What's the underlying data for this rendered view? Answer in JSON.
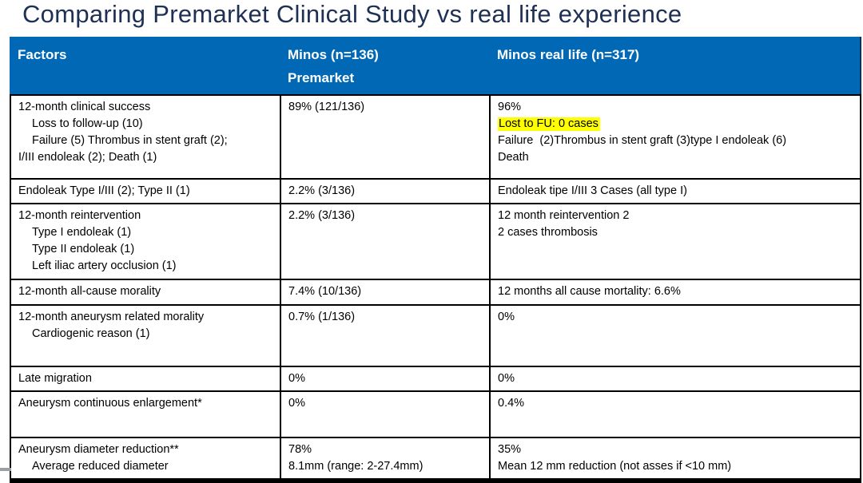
{
  "slide": {
    "title": "Comparing Premarket Clinical Study vs real life experience"
  },
  "table": {
    "colors": {
      "header_bg": "#0068B5",
      "header_text": "#FFFFFF",
      "title_color": "#1F3055",
      "highlight": "#FFFF00",
      "border": "#000000"
    },
    "header": [
      {
        "name": "header-factors",
        "lines": [
          "Factors"
        ]
      },
      {
        "name": "header-premarket",
        "lines": [
          "Minos (n=136)",
          "Premarket"
        ]
      },
      {
        "name": "header-real-life",
        "lines": [
          "Minos real life (n=317)"
        ]
      }
    ],
    "rows": [
      {
        "factor": [
          {
            "text": "12-month clinical success"
          },
          {
            "text": "Loss to follow-up (10)",
            "indent": true
          },
          {
            "text": "Failure (5) Thrombus in stent graft (2);",
            "indent": true
          },
          {
            "text": "I/III endoleak (2); Death (1)"
          }
        ],
        "premarket": [
          {
            "text": "89% (121/136)"
          }
        ],
        "real_life": [
          {
            "text": "96%"
          },
          {
            "text": "Lost to FU: 0 cases",
            "highlight": true
          },
          {
            "text": "Failure  (2)Thrombus in stent graft (3)type I endoleak (6)"
          },
          {
            "text": "Death"
          }
        ]
      },
      {
        "factor": [
          {
            "text": "Endoleak Type I/III (2); Type II (1)"
          }
        ],
        "premarket": [
          {
            "text": "2.2% (3/136)"
          }
        ],
        "real_life": [
          {
            "text": "Endoleak tipe I/III 3 Cases (all type I)"
          }
        ]
      },
      {
        "factor": [
          {
            "text": "12-month reintervention"
          },
          {
            "text": "Type I endoleak (1)",
            "indent": true
          },
          {
            "text": "Type II endoleak (1)",
            "indent": true
          },
          {
            "text": "Left iliac artery occlusion (1)",
            "indent": true
          }
        ],
        "premarket": [
          {
            "text": "2.2% (3/136)"
          }
        ],
        "real_life": [
          {
            "text": "12 month reintervention 2"
          },
          {
            "text": "2 cases thrombosis"
          }
        ]
      },
      {
        "factor": [
          {
            "text": "12-month all-cause morality"
          }
        ],
        "premarket": [
          {
            "text": "7.4% (10/136)"
          }
        ],
        "real_life": [
          {
            "text": "12 months all cause mortality: 6.6%"
          }
        ]
      },
      {
        "factor": [
          {
            "text": "12-month aneurysm related morality"
          },
          {
            "text": "Cardiogenic reason (1)",
            "indent": true
          }
        ],
        "premarket": [
          {
            "text": "0.7% (1/136)"
          }
        ],
        "real_life": [
          {
            "text": "0%"
          }
        ]
      },
      {
        "factor": [
          {
            "text": "Late migration"
          }
        ],
        "premarket": [
          {
            "text": "0%"
          }
        ],
        "real_life": [
          {
            "text": "0%"
          }
        ]
      },
      {
        "factor": [
          {
            "text": "Aneurysm continuous enlargement*"
          }
        ],
        "premarket": [
          {
            "text": "0%"
          }
        ],
        "real_life": [
          {
            "text": "0.4%"
          }
        ]
      },
      {
        "factor": [
          {
            "text": "Aneurysm diameter reduction**"
          },
          {
            "text": "Average reduced diameter",
            "indent": true
          }
        ],
        "premarket": [
          {
            "text": "78%"
          },
          {
            "text": "8.1mm (range: 2-27.4mm)"
          }
        ],
        "real_life": [
          {
            "text": "35%"
          },
          {
            "text": "Mean 12 mm reduction (not asses if <10 mm)"
          }
        ]
      }
    ]
  }
}
